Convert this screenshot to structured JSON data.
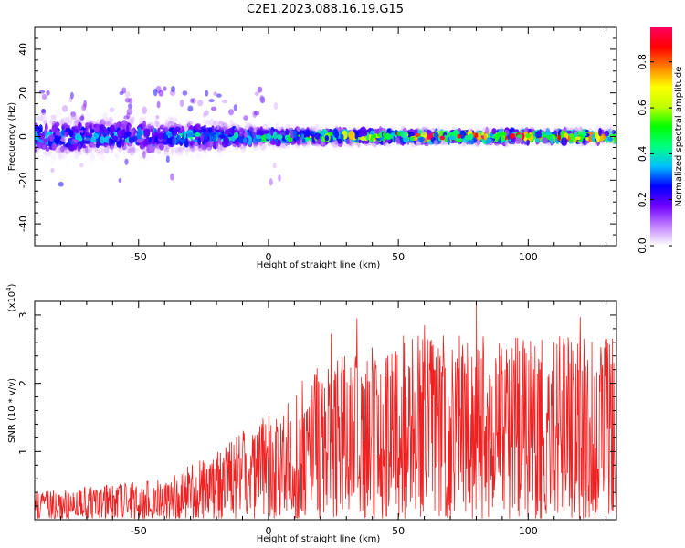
{
  "title": "C2E1.2023.088.16.19.G15",
  "chart_data": [
    {
      "type": "heatmap",
      "xlabel": "Height of straight line (km)",
      "ylabel": "Frequency (Hz)",
      "xlim": [
        -90,
        134
      ],
      "ylim": [
        -50,
        50
      ],
      "xticks": [
        -50,
        0,
        50,
        100
      ],
      "xtick_labels": [
        "-50",
        "0",
        "50",
        "100"
      ],
      "yticks": [
        -40,
        -20,
        0,
        20,
        40
      ],
      "ytick_labels": [
        "-40",
        "-20",
        "0",
        "20",
        "40"
      ],
      "colorbar": {
        "label": "Normalized spectral amplitude",
        "range": [
          0,
          0.95
        ],
        "ticks": [
          0.0,
          0.2,
          0.4,
          0.6,
          0.8
        ],
        "tick_labels": [
          "0.0",
          "0.2",
          "0.4",
          "0.6",
          "0.8"
        ],
        "colors": [
          "#ffffff",
          "#c080ff",
          "#7000ff",
          "#0000ff",
          "#00c0ff",
          "#00ff80",
          "#00ff00",
          "#c0ff00",
          "#ffff00",
          "#ff8000",
          "#ff0000",
          "#ff0060"
        ]
      },
      "band_profile": [
        {
          "x": -90,
          "halfwidth": 11,
          "peak": 0.35
        },
        {
          "x": -50,
          "halfwidth": 10,
          "peak": 0.35
        },
        {
          "x": -20,
          "halfwidth": 8,
          "peak": 0.4
        },
        {
          "x": 0,
          "halfwidth": 5,
          "peak": 0.5
        },
        {
          "x": 30,
          "halfwidth": 4,
          "peak": 0.7
        },
        {
          "x": 60,
          "halfwidth": 3.5,
          "peak": 0.9
        },
        {
          "x": 134,
          "halfwidth": 3.5,
          "peak": 0.9
        }
      ],
      "grid": false
    },
    {
      "type": "line",
      "xlabel": "Height of straight line (km)",
      "ylabel": "SNR (10 * v/v)",
      "multiplier_label": "(x10",
      "multiplier_exponent": "4",
      "xlim": [
        -90,
        134
      ],
      "ylim": [
        0,
        3.2
      ],
      "xticks": [
        -50,
        0,
        50,
        100
      ],
      "xtick_labels": [
        "-50",
        "0",
        "50",
        "100"
      ],
      "yticks": [
        1,
        2,
        3
      ],
      "ytick_labels": [
        "1",
        "2",
        "3"
      ],
      "line_color": "#ee2222",
      "envelope": [
        {
          "x": -90,
          "max": 0.4
        },
        {
          "x": -40,
          "max": 0.6
        },
        {
          "x": -20,
          "max": 1.0
        },
        {
          "x": 0,
          "max": 1.6
        },
        {
          "x": 20,
          "max": 2.3
        },
        {
          "x": 50,
          "max": 2.7
        },
        {
          "x": 134,
          "max": 2.7
        }
      ],
      "peaks": [
        {
          "x": 80,
          "y": 3.2
        },
        {
          "x": 34,
          "y": 2.95
        },
        {
          "x": 120,
          "y": 2.97
        },
        {
          "x": 60,
          "y": 2.85
        },
        {
          "x": 24,
          "y": 2.72
        }
      ],
      "grid": false
    }
  ]
}
